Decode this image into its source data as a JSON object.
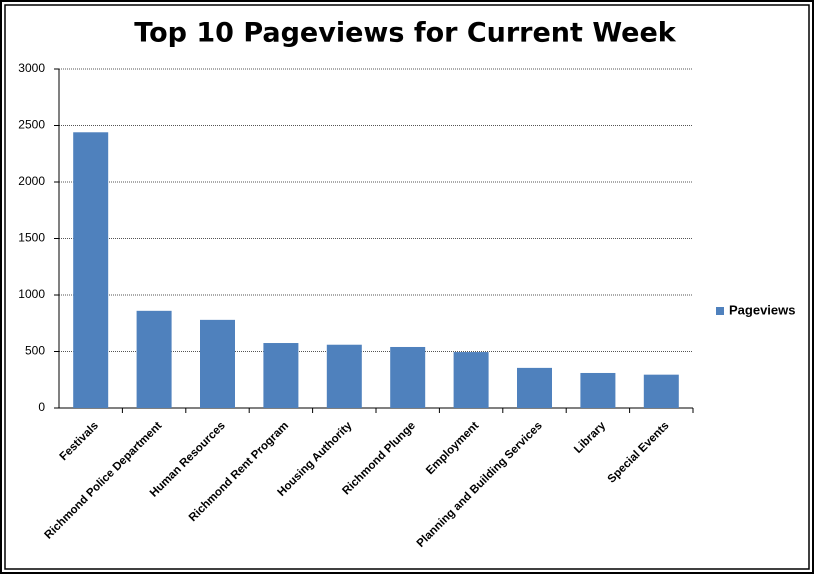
{
  "chart_data": {
    "type": "bar",
    "title": "Top 10 Pageviews for Current Week",
    "categories": [
      "Festivals",
      "Richmond Police Department",
      "Human Resources",
      "Richmond Rent Program",
      "Housing Authority",
      "Richmond Plunge",
      "Employment",
      "Planning and Building Services",
      "Library",
      "Special Events"
    ],
    "series": [
      {
        "name": "Pageviews",
        "color": "#4f81bd",
        "values": [
          2440,
          860,
          780,
          575,
          560,
          540,
          495,
          355,
          310,
          295
        ]
      }
    ],
    "ylim": [
      0,
      3000
    ],
    "yticks": [
      0,
      500,
      1000,
      1500,
      2000,
      2500,
      3000
    ],
    "grid": true,
    "legend": "right"
  }
}
